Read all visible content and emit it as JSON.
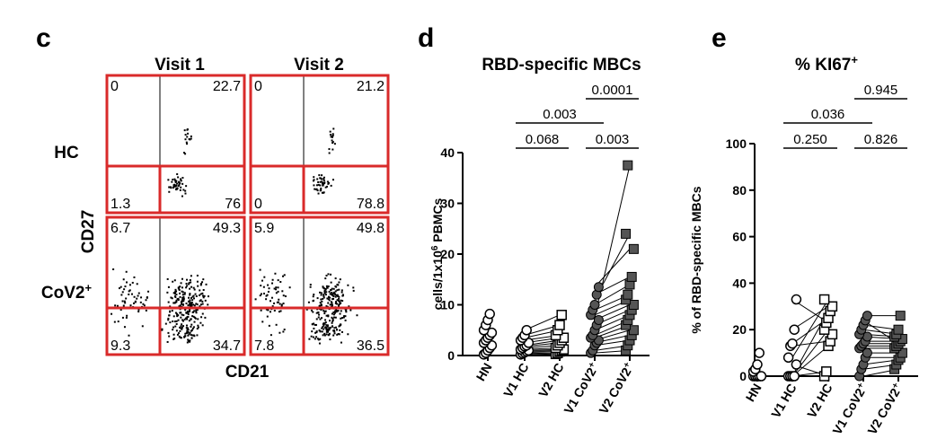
{
  "colors": {
    "gate": "#d92a2a",
    "dot": "#000000",
    "filled": "#555555",
    "open": "#ffffff"
  },
  "panel_c": {
    "letter": "c",
    "col_labels": [
      "Visit 1",
      "Visit 2"
    ],
    "row_labels": [
      "HC",
      "CoV2",
      "+"
    ],
    "ylabel": "CD27",
    "xlabel": "CD21",
    "quadrants": [
      {
        "tl": "0",
        "tr": "22.7",
        "bl": "1.3",
        "br": "76"
      },
      {
        "tl": "0",
        "tr": "21.2",
        "bl": "0",
        "br": "78.8"
      },
      {
        "tl": "6.7",
        "tr": "49.3",
        "bl": "9.3",
        "br": "34.7"
      },
      {
        "tl": "5.9",
        "tr": "49.8",
        "bl": "7.8",
        "br": "36.5"
      }
    ]
  },
  "panel_d": {
    "letter": "d"
  },
  "panel_e": {
    "letter": "e"
  },
  "chart_data": [
    {
      "type": "scatter",
      "title": "RBD-specific MBCs",
      "ylabel_main": "cells/1x10",
      "ylabel_sup": "6",
      "ylabel_tail": " PBMCs",
      "ylim": [
        0,
        40
      ],
      "yticks": [
        "0",
        "10",
        "20",
        "30",
        "40"
      ],
      "categories": [
        "HN",
        "V1 HC",
        "V2 HC",
        "V1 CoV2",
        "V2 CoV2"
      ],
      "category_sup": [
        "",
        "",
        "",
        "+",
        "+"
      ],
      "values": [
        [
          0.2,
          0.5,
          1,
          1.5,
          2,
          2.5,
          3,
          3.5,
          4,
          4.5,
          5,
          6,
          7,
          8.2
        ],
        [
          0.2,
          0.4,
          0.6,
          0.8,
          1,
          1.2,
          1.5,
          1.8,
          2,
          2.5,
          3,
          3.5,
          4,
          5
        ],
        [
          0.3,
          0.5,
          0.8,
          1,
          1.2,
          1.5,
          2,
          2.5,
          3,
          3.5,
          4,
          5,
          6,
          8
        ],
        [
          0.5,
          1,
          2,
          2.5,
          3,
          3.5,
          4,
          5,
          6,
          7,
          8,
          9,
          10,
          12,
          13.5
        ],
        [
          1,
          2,
          3,
          4,
          5,
          6,
          7,
          8,
          9,
          10,
          11,
          12,
          14,
          15.5,
          21,
          24,
          37.5
        ]
      ],
      "pairs": [
        {
          "from": 1,
          "to": 2,
          "y": [
            [
              0.2,
              0.3
            ],
            [
              0.4,
              0.5
            ],
            [
              0.6,
              0.8
            ],
            [
              0.8,
              1
            ],
            [
              1,
              1.2
            ],
            [
              1.2,
              1.5
            ],
            [
              1.5,
              2
            ],
            [
              1.8,
              2.5
            ],
            [
              2,
              3
            ],
            [
              2.5,
              3.5
            ],
            [
              3,
              4
            ],
            [
              3.5,
              5
            ],
            [
              4,
              6
            ],
            [
              5,
              8
            ]
          ]
        },
        {
          "from": 3,
          "to": 4,
          "y": [
            [
              0.5,
              1
            ],
            [
              1,
              2
            ],
            [
              2,
              3
            ],
            [
              2.5,
              4
            ],
            [
              3,
              5
            ],
            [
              3.5,
              6
            ],
            [
              4,
              7
            ],
            [
              5,
              8
            ],
            [
              6,
              9
            ],
            [
              7,
              10
            ],
            [
              8,
              11
            ],
            [
              9,
              12
            ],
            [
              10,
              14
            ],
            [
              12,
              15.5
            ],
            [
              13.5,
              21
            ],
            [
              11,
              24
            ],
            [
              7.5,
              37.5
            ]
          ]
        }
      ],
      "comparisons": [
        {
          "a": 3,
          "b": 4,
          "p": "0.0001"
        },
        {
          "a": 1,
          "b": 3,
          "p": "0.003"
        },
        {
          "a": 1,
          "b": 2,
          "p": "0.068"
        },
        {
          "a": 3,
          "b": 4,
          "p": "0.003"
        }
      ]
    },
    {
      "type": "scatter",
      "title_main": "% KI67",
      "title_sup": "+",
      "ylabel": "% of RBD-specific MBCs",
      "ylim": [
        0,
        100
      ],
      "yticks": [
        "0",
        "20",
        "40",
        "60",
        "80",
        "100"
      ],
      "categories": [
        "HN",
        "V1 HC",
        "V2 HC",
        "V1 CoV2",
        "V2 CoV2"
      ],
      "category_sup": [
        "",
        "",
        "",
        "+",
        "+"
      ],
      "values": [
        [
          0,
          0,
          0,
          0,
          0,
          2,
          3,
          5,
          10
        ],
        [
          0,
          0,
          0,
          0,
          5,
          8,
          13,
          14,
          20,
          33
        ],
        [
          0,
          2,
          13,
          15,
          18,
          20,
          23,
          25,
          28,
          30,
          33
        ],
        [
          0,
          3,
          5,
          8,
          10,
          12,
          13,
          14,
          15,
          17,
          18,
          20,
          22,
          24,
          26
        ],
        [
          3,
          5,
          7,
          8,
          10,
          12,
          13,
          14,
          15,
          16,
          17,
          18,
          20,
          26
        ]
      ],
      "pairs": [
        {
          "from": 1,
          "to": 2,
          "y": [
            [
              0,
              2
            ],
            [
              0,
              13
            ],
            [
              0,
              20
            ],
            [
              0,
              28
            ],
            [
              5,
              0
            ],
            [
              8,
              33
            ],
            [
              13,
              15
            ],
            [
              14,
              25
            ],
            [
              20,
              30
            ],
            [
              33,
              23
            ]
          ]
        },
        {
          "from": 3,
          "to": 4,
          "y": [
            [
              0,
              3
            ],
            [
              3,
              5
            ],
            [
              5,
              7
            ],
            [
              8,
              8
            ],
            [
              10,
              10
            ],
            [
              12,
              12
            ],
            [
              13,
              13
            ],
            [
              14,
              14
            ],
            [
              15,
              15
            ],
            [
              17,
              16
            ],
            [
              18,
              17
            ],
            [
              20,
              18
            ],
            [
              22,
              20
            ],
            [
              24,
              14
            ],
            [
              26,
              26
            ]
          ]
        }
      ],
      "comparisons": [
        {
          "a": 3,
          "b": 4,
          "p": "0.945"
        },
        {
          "a": 1,
          "b": 3,
          "p": "0.036"
        },
        {
          "a": 1,
          "b": 2,
          "p": "0.250"
        },
        {
          "a": 3,
          "b": 4,
          "p": "0.826"
        }
      ]
    }
  ]
}
